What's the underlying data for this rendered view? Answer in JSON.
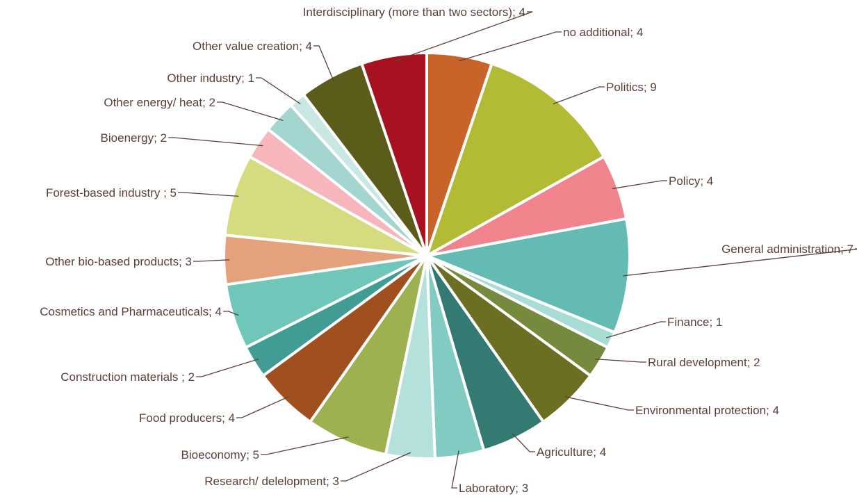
{
  "chart_data": {
    "type": "pie",
    "title": "",
    "separator": "; ",
    "slices": [
      {
        "label": "no additional",
        "value": 4,
        "color": "#c8642a"
      },
      {
        "label": "Politics",
        "value": 9,
        "color": "#b3bb35"
      },
      {
        "label": "Policy",
        "value": 4,
        "color": "#f0838c"
      },
      {
        "label": "General administration",
        "value": 7,
        "color": "#63bbb3"
      },
      {
        "label": "Finance",
        "value": 1,
        "color": "#a8ddd6"
      },
      {
        "label": "Rural development",
        "value": 2,
        "color": "#768a3e"
      },
      {
        "label": "Environmental protection",
        "value": 4,
        "color": "#6c6e22"
      },
      {
        "label": "Agriculture",
        "value": 4,
        "color": "#337a72"
      },
      {
        "label": "Laboratory",
        "value": 3,
        "color": "#82cbc2"
      },
      {
        "label": "Research/ delelopment",
        "value": 3,
        "color": "#b4e1dc"
      },
      {
        "label": "Bioeconomy",
        "value": 5,
        "color": "#9db150"
      },
      {
        "label": "Food producers",
        "value": 4,
        "color": "#a0501e"
      },
      {
        "label": "Construction materials ",
        "value": 2,
        "color": "#419d93"
      },
      {
        "label": "Cosmetics and Pharmaceuticals",
        "value": 4,
        "color": "#6fc6b9"
      },
      {
        "label": "Other bio-based products",
        "value": 3,
        "color": "#e4a17b"
      },
      {
        "label": "Forest-based industry ",
        "value": 5,
        "color": "#d6db7f"
      },
      {
        "label": "Bioenergy",
        "value": 2,
        "color": "#f6b6bc"
      },
      {
        "label": "Other energy/ heat",
        "value": 2,
        "color": "#a3d6d1"
      },
      {
        "label": "Other industry",
        "value": 1,
        "color": "#c9e8e4"
      },
      {
        "label": "Other value creation",
        "value": 4,
        "color": "#5b5b1a"
      },
      {
        "label": "Interdisciplinary (more than two sectors)",
        "value": 4,
        "color": "#a8111f"
      }
    ]
  }
}
